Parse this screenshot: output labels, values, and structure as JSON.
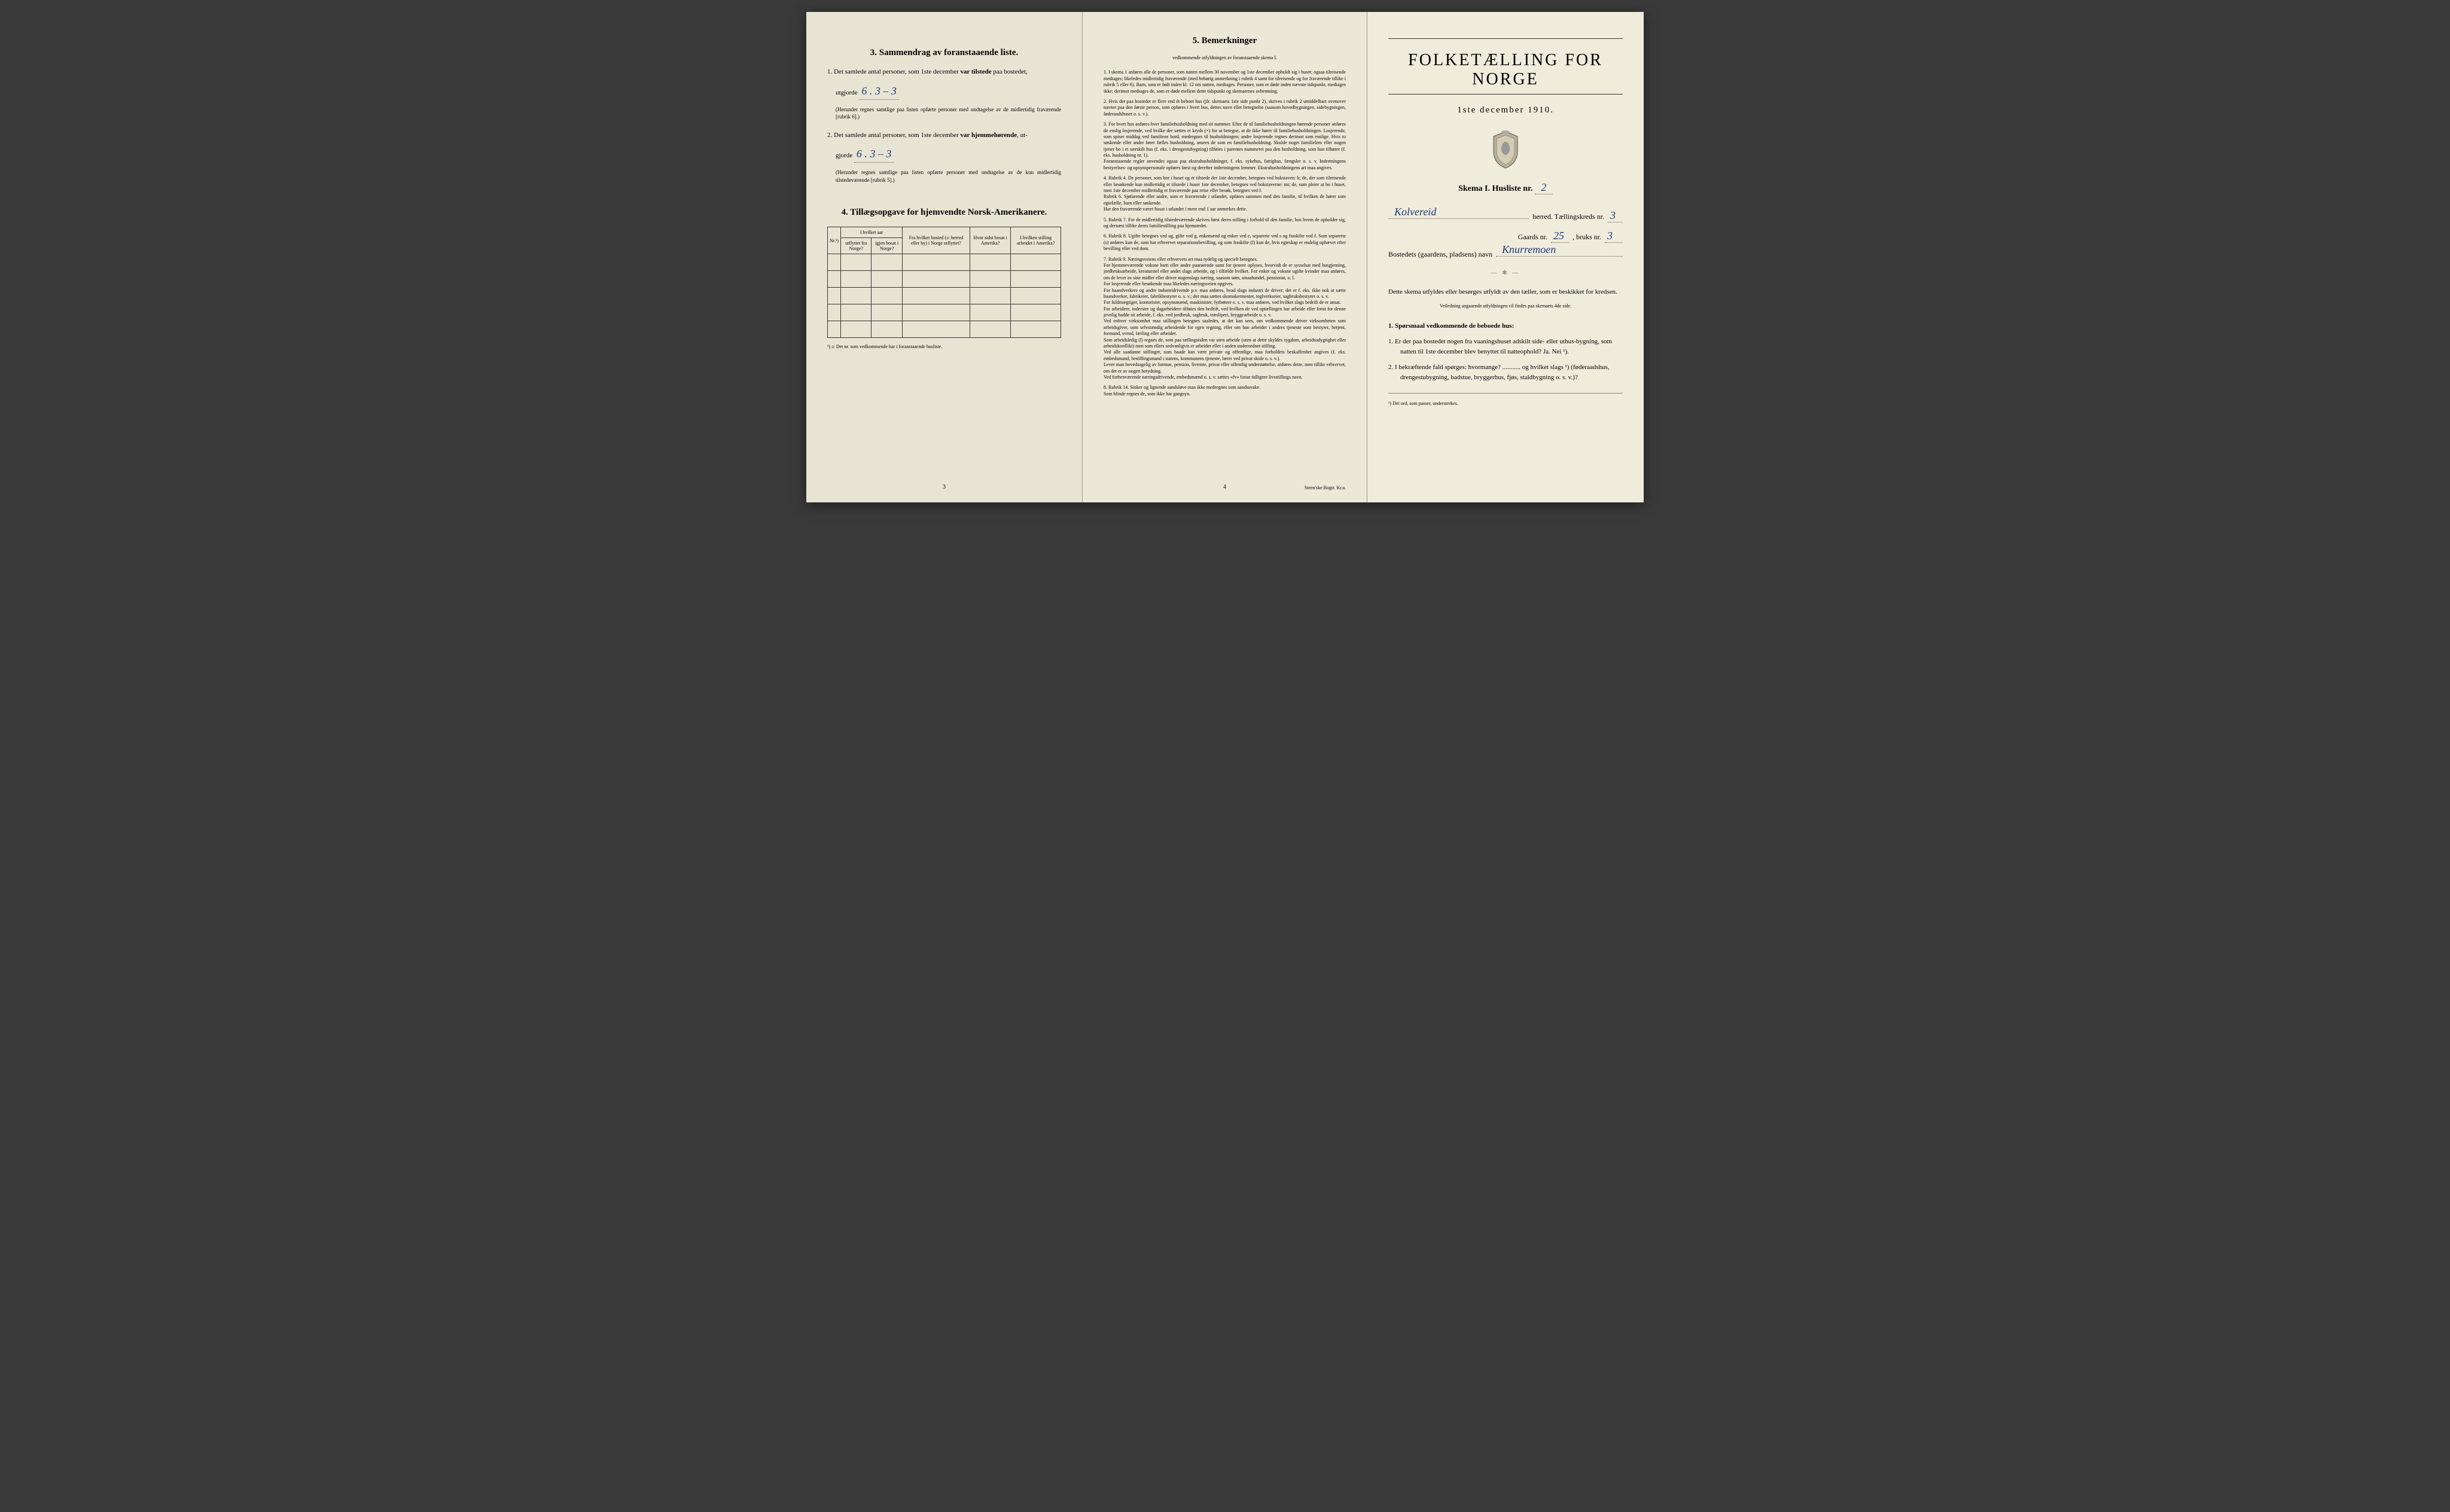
{
  "left": {
    "section3_title": "3.  Sammendrag av foranstaaende liste.",
    "item1_prefix": "1.  Det samlede antal personer, som 1ste december ",
    "item1_bold": "var tilstede",
    "item1_suffix": " paa bostedet,",
    "item1_line2": "utgjorde",
    "item1_hand": "6 .  3 – 3",
    "item1_note": "(Herunder regnes samtlige paa listen opførte personer med undtagelse av de midlertidig fraværende [rubrik 6].)",
    "item2_prefix": "2.  Det samlede antal personer, som 1ste december ",
    "item2_bold": "var hjemmehørende",
    "item2_suffix": ", ut-",
    "item2_line2": "gjorde",
    "item2_hand": "6 .  3 – 3",
    "item2_note": "(Herunder regnes samtlige paa listen opførte personer med undtagelse av de kun midlertidig tilstedeværende [rubrik 5].)",
    "section4_title": "4.  Tillægsopgave for hjemvendte Norsk-Amerikanere.",
    "table_headers": {
      "nr": "Nr.¹)",
      "hvilket_aar": "I hvilket aar",
      "utflyttet": "utflyttet fra Norge?",
      "igjen": "igjen bosat i Norge?",
      "fra_bosted": "Fra hvilket bosted (ɔ: herred eller by) i Norge utflyttet?",
      "hvor_sidst": "Hvor sidst bosat i Amerika?",
      "stilling": "I hvilken stilling arbeidet i Amerika?"
    },
    "table_footnote": "¹) ɔ: Det nr. som vedkommende har i foranstaaende husliste.",
    "page_num": "3"
  },
  "middle": {
    "title": "5.  Bemerkninger",
    "subtitle": "vedkommende utfyldningen av foranstaaende skema I.",
    "items": [
      "1.  I skema 1 anføres alle de personer, som natten mellem 30 november og 1ste december opholdt sig i huset; ogsaa tilreisende medtages; likeledes midlertidig fraværende (med behørig anmerkning i rubrik 4 samt for tilreisende og for fraværende tillike i rubrik 5 eller 6). Barn, som er født inden kl. 12 om natten, medtages. Personer, som er døde inden nævnte tidspunkt, medtages ikke; derimot medtages de, som er døde mellem dette tidspunkt og skemaernes avhentning.",
      "2.  Hvis der paa bostedet er flere end ét beboet hus (jfr. skemaets 1ste side punkt 2), skrives i rubrik 2 umiddelbart ovenover navnet paa den første person, som opføres i hvert hus, dettes navn eller betegnelse (saasom hovedbygningen, sidebygningen, føderaadshuset o. s. v.).",
      "3.  For hvert hus anføres hver familiehusholdning med sit nummer. Efter de til familiehusholdningen hørende personer anføres de enslig losjerende, ved hvilke der sættes et kryds (×) for at betegne, at de ikke hører til familiehusholdningen. Losjerende, som spiser middag ved familiens bord, medregnes til husholdningen; andre losjerende regnes derimot som enslige. Hvis to søskende eller andre fører fælles husholdning, ansees de som en familiehusholdning. Skulde noget familielem eller nogen tjener bo i et særskilt hus (f. eks. i drengestubygning) tilføies i parentes nummeret paa den husholdning, som han tilhører (f. eks. husholdning nr. 1).\n   Foranstaaende regler anvendes ogsaa paa ekstrahusholdninger, f. eks. sykehus, fattighus, fængsler o. s. v. Indretningens bestyrelses- og opsynspersonale opføres først og derefter indretningens lemmer. Ekstrahusholdningens art maa angives.",
      "4.  Rubrik 4. De personer, som bor i huset og er tilstede der 1ste december, betegnes ved bokstaven: b; de, der som tilreisende eller besøkende kun midlertidig er tilstede i huset 1ste december, betegnes ved bokstaverne: mt; de, som pleier at bo i huset, men 1ste december midlertidig er fraværende paa reise eller besøk, betegnes ved f.\n   Rubrik 6. Sjøfarende eller andre, som er fraværende i utlandet, opføres sammen med den familie, til hvilken de hører som egtefælle, barn eller søskende.\n   Har den fraværende været bosat i utlandet i mere end 1 aar anmerkes dette.",
      "5.  Rubrik 7. For de midlertidig tilstedeværende skrives først deres stilling i forhold til den familie, hos hvem de opholder sig, og dernæst tillike deres familiestilling paa hjemstedet.",
      "6.  Rubrik 8. Ugifte betegnes ved ug, gifte ved g, enkemænd og enker ved e, separerte ved s og fraskilte ved f. Som separerte (s) anføres kun de, som har erhvervet separationsbevilling, og som fraskilte (f) kun de, hvis egteskap er endelig ophævet efter bevilling eller ved dom.",
      "7.  Rubrik 9. Næringsveiens eller erhvervets art maa tydelig og specielt betegnes.\n   For hjemmeværende voksne barn eller andre paarørende samt for tjenere oplyses, hvorvidt de er sysselsat med husgjerning, jordbruksarbeide, kreaturstel eller andet slags arbeide, og i tilfælde hvilket. For enker og voksne ugifte kvinder maa anføres, om de lever av sine midler eller driver nogenslags næring, saasom søm, smaahandel, pensionat, o. l.\n   For losjerende eller besøkende maa likeledes næringsveien opgives.\n   For haandverkere og andre industridrivende p.v. maa anføres, hvad slags industri de driver; det er f. eks. ikke nok at sætte haandverker, fabrikeier, fabrikbestyrer o. s. v.; der maa sættes skomakermester, teglverkseier, sagbruksbestyrer o. s. v.\n   For fuldmægtiger, kontorister, opsynsmænd, maskinister, fyrbøtere o. s. v. maa anføres, ved hvilket slags bedrift de er ansat.\n   For arbeidere, inderster og dagarbeidere tilføies den bedrift, ved hvilken de ved optællingen har arbeide eller forut for denne jevnlig hadde sit arbeide, f. eks. ved jordbruk, sagbruk, træsliperi, bryggearbeide o. s. v.\n   Ved enhver virksomhet maa stillingen betegnes saaledes, at det kan sees, om vedkommende driver virksomheten som arbeidsgiver, som selvstændig arbeidende for egen regning, eller om han arbeider i andres tjeneste som bestyrer, betjent, formand, svend, lærling eller arbeider.\n   Som arbeidsledig (l) regnes de, som paa tællingstiden var uten arbeide (uten at dette skyldes sygdom, arbeidsudygtighet eller arbeidskonflikt) men som ellers sedvanligvis er arbeider eller i anden underordnet stilling.\n   Ved alle saadanne stillinger, som baade kan være private og offentlige, maa forholdets beskaffenhet angives (f. eks. embedsmand, bestillingsmand i statens, kommunens tjeneste, lærer ved privat skole o. s. v.).\n   Lever man hovedsagelig av formue, pension, livrente, privat eller offentlig understøttelse, anføres dette, men tillike erhvervet, om det er av nogen betydning.\n   Ved forhenværende næringsdrivende, embedsmænd o. s. v. sættes «fv» foran tidligere livsstillings navn.",
      "8.  Rubrik 14. Sinker og lignende aandsløve maa ikke medregnes som aandssvake.\n   Som blinde regnes de, som ikke har gangsyn."
    ],
    "page_num": "4",
    "printer": "Steen'ske Bogtr.  Kr.a."
  },
  "right": {
    "main_title": "FOLKETÆLLING FOR NORGE",
    "date_line": "1ste december 1910.",
    "skema_label": "Skema I.   Husliste nr.",
    "skema_nr": "2",
    "herred_hand": "Kolvereid",
    "herred_label": "herred.   Tællingskreds nr.",
    "kreds_nr": "3",
    "gaards_label": "Gaards nr.",
    "gaards_nr": "25",
    "bruks_label": ", bruks nr.",
    "bruks_nr": "3",
    "bostedets_label": "Bostedets (gaardens, pladsens) navn",
    "bostedets_hand": "Knurremoen",
    "instruction": "Dette skema utfyldes eller besørges utfyldt av den tæller, som er beskikket for kredsen.",
    "instruction_sub": "Veiledning angaaende utfyldningen vil findes paa skemaets 4de side.",
    "q_header": "1.  Spørsmaal vedkommende de beboede hus:",
    "q1": "1.  Er der paa bostedet nogen fra vaaningshuset adskilt side- eller uthus-bygning, som natten til 1ste december blev benyttet til natteophold?   Ja.   Nei ¹).",
    "q2": "2.  I bekræftende fald spørges: hvormange? ........... og hvilket slags ¹) (føderaadshus, drengestubygning, badstue, bryggerhus, fjøs, staldbygning o. s. v.)?",
    "footnote": "¹) Det ord, som passer, understrekes."
  }
}
